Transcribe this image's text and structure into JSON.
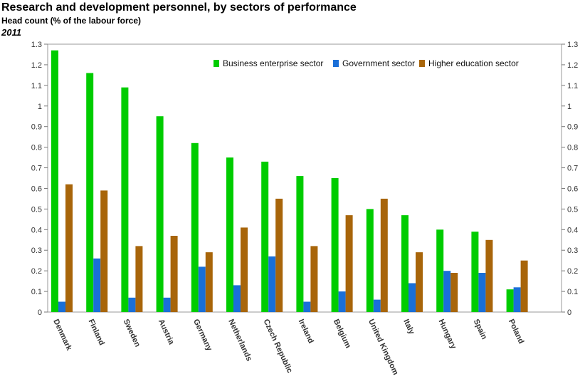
{
  "header": {
    "title": "Research and development personnel, by sectors of performance",
    "subtitle": "Head count (% of the labour force)",
    "period": "2011"
  },
  "chart_data": {
    "type": "bar",
    "title": "Research and development personnel, by sectors of performance",
    "ylabel": "Head count (% of the labour force)",
    "xlabel": "",
    "ylim": [
      0,
      1.3
    ],
    "yticks": [
      "0",
      "0.1",
      "0.2",
      "0.3",
      "0.4",
      "0.5",
      "0.6",
      "0.7",
      "0.8",
      "0.9",
      "1",
      "1.1",
      "1.2",
      "1.3"
    ],
    "legend_position": "top-right",
    "categories": [
      "Denmark",
      "Finland",
      "Sweden",
      "Austria",
      "Germany",
      "Netherlands",
      "Czech Republic",
      "Ireland",
      "Belgium",
      "United Kingdom",
      "Italy",
      "Hungary",
      "Spain",
      "Poland"
    ],
    "series": [
      {
        "name": "Business enterprise sector",
        "color": "#00cc00",
        "values": [
          1.27,
          1.16,
          1.09,
          0.95,
          0.82,
          0.75,
          0.73,
          0.66,
          0.65,
          0.5,
          0.47,
          0.4,
          0.39,
          0.11
        ]
      },
      {
        "name": "Government sector",
        "color": "#1a6fd8",
        "values": [
          0.05,
          0.26,
          0.07,
          0.07,
          0.22,
          0.13,
          0.27,
          0.05,
          0.1,
          0.06,
          0.14,
          0.2,
          0.19,
          0.12
        ]
      },
      {
        "name": "Higher education sector",
        "color": "#a8650a",
        "values": [
          0.62,
          0.59,
          0.32,
          0.37,
          0.29,
          0.41,
          0.55,
          0.32,
          0.47,
          0.55,
          0.29,
          0.19,
          0.35,
          0.25
        ]
      }
    ]
  }
}
